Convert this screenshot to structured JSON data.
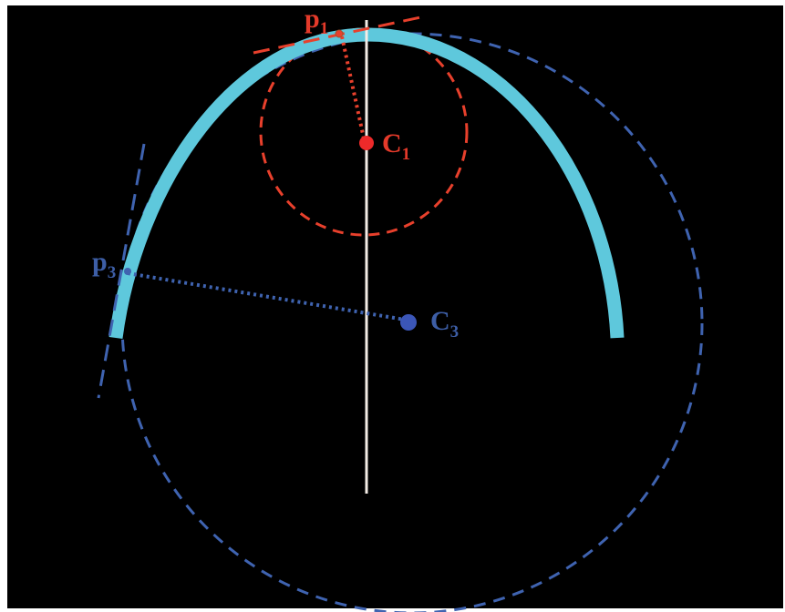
{
  "labels": {
    "p1": {
      "main": "p",
      "sub": "1"
    },
    "c1": {
      "main": "C",
      "sub": "1"
    },
    "p3": {
      "main": "p",
      "sub": "3"
    },
    "c3": {
      "main": "C",
      "sub": "3"
    }
  },
  "colors": {
    "background": "#000000",
    "border": "#ffffff",
    "curve": "#5ec8dc",
    "red": "#e8402c",
    "red_dot": "#ee2a2a",
    "red_label": "#e43a2a",
    "blue": "#3f63b0",
    "blue_dot": "#3b56b8",
    "blue_label": "#3d5ea6",
    "axis": "#f4ece6"
  }
}
